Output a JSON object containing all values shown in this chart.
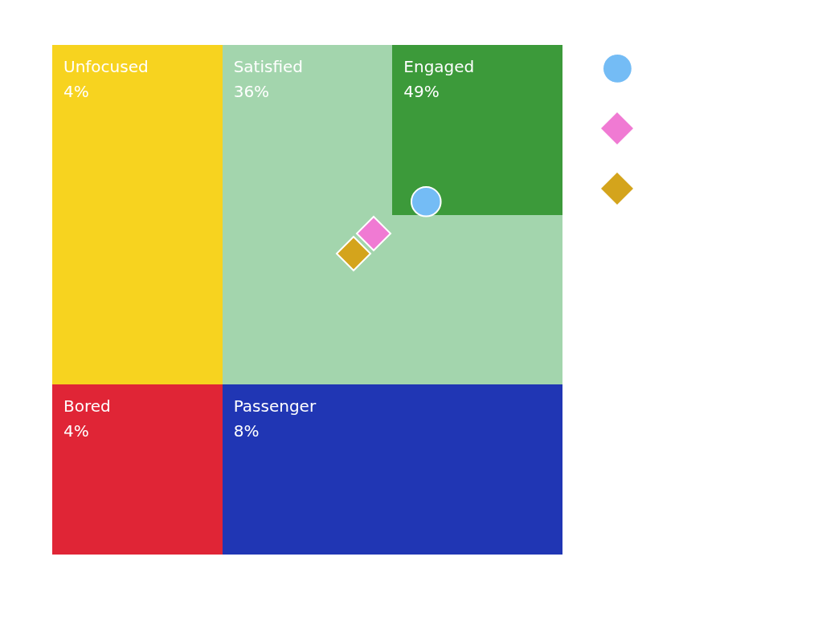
{
  "chart_data": {
    "type": "other",
    "categories": [
      "Unfocused",
      "Satisfied",
      "Engaged",
      "Bored",
      "Passenger"
    ],
    "values": [
      4,
      36,
      49,
      4,
      8
    ],
    "value_labels": [
      "4%",
      "36%",
      "49%",
      "4%",
      "8%"
    ],
    "colors": [
      "#f7d31f",
      "#a3d5ad",
      "#3c9a3a",
      "#e02536",
      "#2036b4"
    ]
  }
}
